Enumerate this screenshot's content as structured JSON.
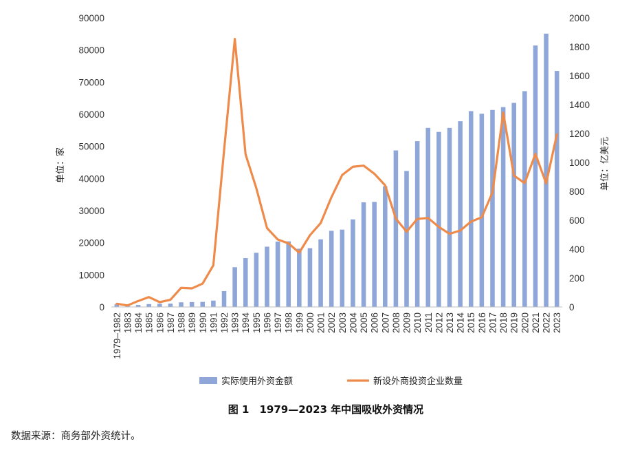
{
  "figure": {
    "caption": "图 1　1979—2023 年中国吸收外资情况",
    "source_note": "数据来源：商务部外资统计。"
  },
  "chart_data": {
    "type": "bar",
    "categories": [
      "1979–1982",
      "1983",
      "1984",
      "1985",
      "1986",
      "1987",
      "1988",
      "1989",
      "1990",
      "1991",
      "1992",
      "1993",
      "1994",
      "1995",
      "1996",
      "1997",
      "1998",
      "1999",
      "2000",
      "2001",
      "2002",
      "2003",
      "2004",
      "2005",
      "2006",
      "2007",
      "2008",
      "2009",
      "2010",
      "2011",
      "2012",
      "2013",
      "2014",
      "2015",
      "2016",
      "2017",
      "2018",
      "2019",
      "2020",
      "2021",
      "2022",
      "2023"
    ],
    "series": [
      {
        "name": "实际使用外资金额",
        "type": "bar",
        "axis": "right",
        "color": "#8EA6D8",
        "values": [
          18,
          9,
          14,
          20,
          22,
          23,
          32,
          34,
          35,
          44,
          110,
          275,
          338,
          375,
          417,
          452,
          454,
          403,
          407,
          468,
          527,
          535,
          606,
          724,
          727,
          835,
          1083,
          941,
          1147,
          1239,
          1211,
          1239,
          1285,
          1355,
          1337,
          1363,
          1383,
          1412,
          1493,
          1809,
          1891,
          1633
        ]
      },
      {
        "name": "新设外商投资企业数量",
        "type": "line",
        "axis": "left",
        "color": "#EE8A4A",
        "values": [
          1000,
          470,
          1860,
          3070,
          1500,
          2230,
          5950,
          5780,
          7270,
          12980,
          48760,
          83440,
          47550,
          37010,
          24560,
          21000,
          19800,
          16900,
          22340,
          26140,
          34170,
          41080,
          43660,
          44000,
          41470,
          37870,
          27510,
          23440,
          27410,
          27710,
          24930,
          22770,
          23780,
          26580,
          27900,
          35650,
          60530,
          40890,
          38570,
          47640,
          38500,
          53770
        ]
      }
    ],
    "left_axis": {
      "label": "单位：家",
      "min": 0,
      "max": 90000,
      "ticks": [
        0,
        10000,
        20000,
        30000,
        40000,
        50000,
        60000,
        70000,
        80000,
        90000
      ]
    },
    "right_axis": {
      "label": "单位：亿美元",
      "min": 0,
      "max": 2000,
      "ticks": [
        0,
        200,
        400,
        600,
        800,
        1000,
        1200,
        1400,
        1600,
        1800,
        2000
      ]
    },
    "grid": false,
    "legend_position": "bottom"
  },
  "colors": {
    "bar": "#8EA6D8",
    "line": "#EE8A4A",
    "axis": "#bfbfbf"
  }
}
